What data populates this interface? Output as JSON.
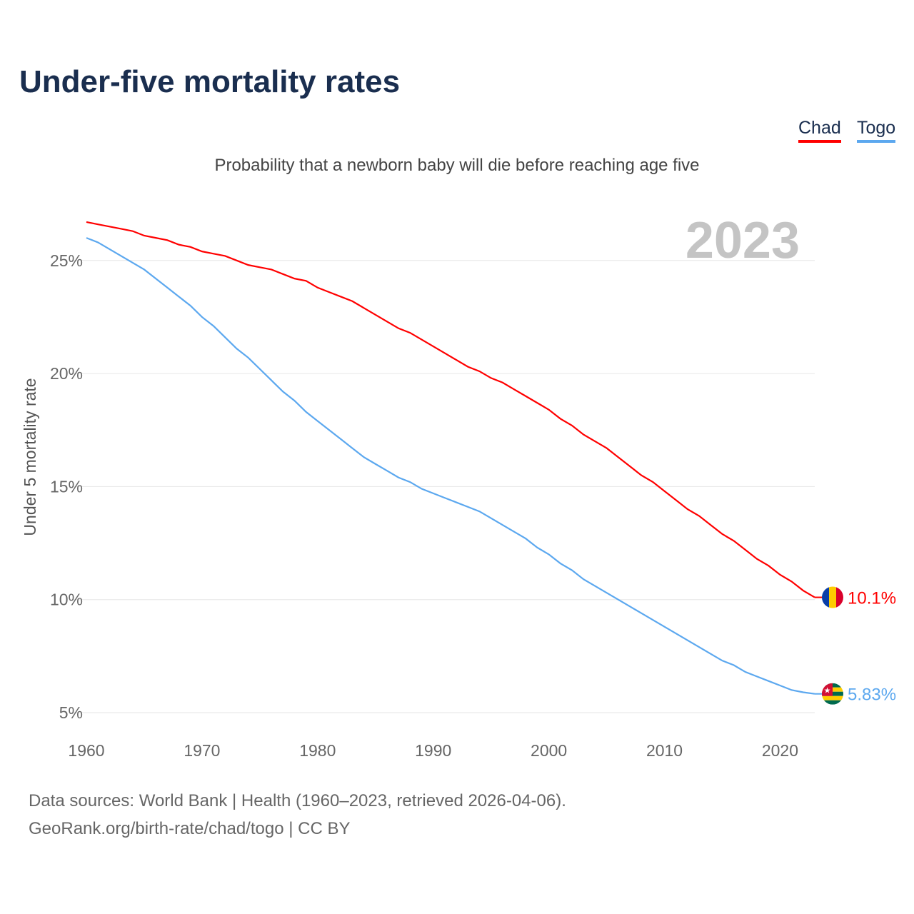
{
  "chart_data": {
    "type": "line",
    "title": "Under-five mortality rates",
    "subtitle": "Probability that a newborn baby will die before reaching age five",
    "ylabel": "Under 5 mortality rate",
    "xlabel": "",
    "year_label": "2023",
    "xlim": [
      1960,
      2023
    ],
    "ylim": [
      5,
      27
    ],
    "x_ticks": [
      "1960",
      "1970",
      "1980",
      "1990",
      "2000",
      "2010",
      "2020"
    ],
    "y_ticks": [
      "5%",
      "10%",
      "15%",
      "20%",
      "25%"
    ],
    "legend": "top-right",
    "x": [
      1960,
      1961,
      1962,
      1963,
      1964,
      1965,
      1966,
      1967,
      1968,
      1969,
      1970,
      1971,
      1972,
      1973,
      1974,
      1975,
      1976,
      1977,
      1978,
      1979,
      1980,
      1981,
      1982,
      1983,
      1984,
      1985,
      1986,
      1987,
      1988,
      1989,
      1990,
      1991,
      1992,
      1993,
      1994,
      1995,
      1996,
      1997,
      1998,
      1999,
      2000,
      2001,
      2002,
      2003,
      2004,
      2005,
      2006,
      2007,
      2008,
      2009,
      2010,
      2011,
      2012,
      2013,
      2014,
      2015,
      2016,
      2017,
      2018,
      2019,
      2020,
      2021,
      2022,
      2023
    ],
    "series": [
      {
        "name": "Chad",
        "color": "#ff0000",
        "end_label": "10.1%",
        "values": [
          26.7,
          26.6,
          26.5,
          26.4,
          26.3,
          26.1,
          26.0,
          25.9,
          25.7,
          25.6,
          25.4,
          25.3,
          25.2,
          25.0,
          24.8,
          24.7,
          24.6,
          24.4,
          24.2,
          24.1,
          23.8,
          23.6,
          23.4,
          23.2,
          22.9,
          22.6,
          22.3,
          22.0,
          21.8,
          21.5,
          21.2,
          20.9,
          20.6,
          20.3,
          20.1,
          19.8,
          19.6,
          19.3,
          19.0,
          18.7,
          18.4,
          18.0,
          17.7,
          17.3,
          17.0,
          16.7,
          16.3,
          15.9,
          15.5,
          15.2,
          14.8,
          14.4,
          14.0,
          13.7,
          13.3,
          12.9,
          12.6,
          12.2,
          11.8,
          11.5,
          11.1,
          10.8,
          10.4,
          10.1
        ]
      },
      {
        "name": "Togo",
        "color": "#5ca8ef",
        "end_label": "5.83%",
        "values": [
          26.0,
          25.8,
          25.5,
          25.2,
          24.9,
          24.6,
          24.2,
          23.8,
          23.4,
          23.0,
          22.5,
          22.1,
          21.6,
          21.1,
          20.7,
          20.2,
          19.7,
          19.2,
          18.8,
          18.3,
          17.9,
          17.5,
          17.1,
          16.7,
          16.3,
          16.0,
          15.7,
          15.4,
          15.2,
          14.9,
          14.7,
          14.5,
          14.3,
          14.1,
          13.9,
          13.6,
          13.3,
          13.0,
          12.7,
          12.3,
          12.0,
          11.6,
          11.3,
          10.9,
          10.6,
          10.3,
          10.0,
          9.7,
          9.4,
          9.1,
          8.8,
          8.5,
          8.2,
          7.9,
          7.6,
          7.3,
          7.1,
          6.8,
          6.6,
          6.4,
          6.2,
          6.0,
          5.9,
          5.83
        ]
      }
    ]
  },
  "source_line1": "Data sources: World Bank | Health (1960–2023, retrieved 2026-04-06).",
  "source_line2": "GeoRank.org/birth-rate/chad/togo | CC BY"
}
